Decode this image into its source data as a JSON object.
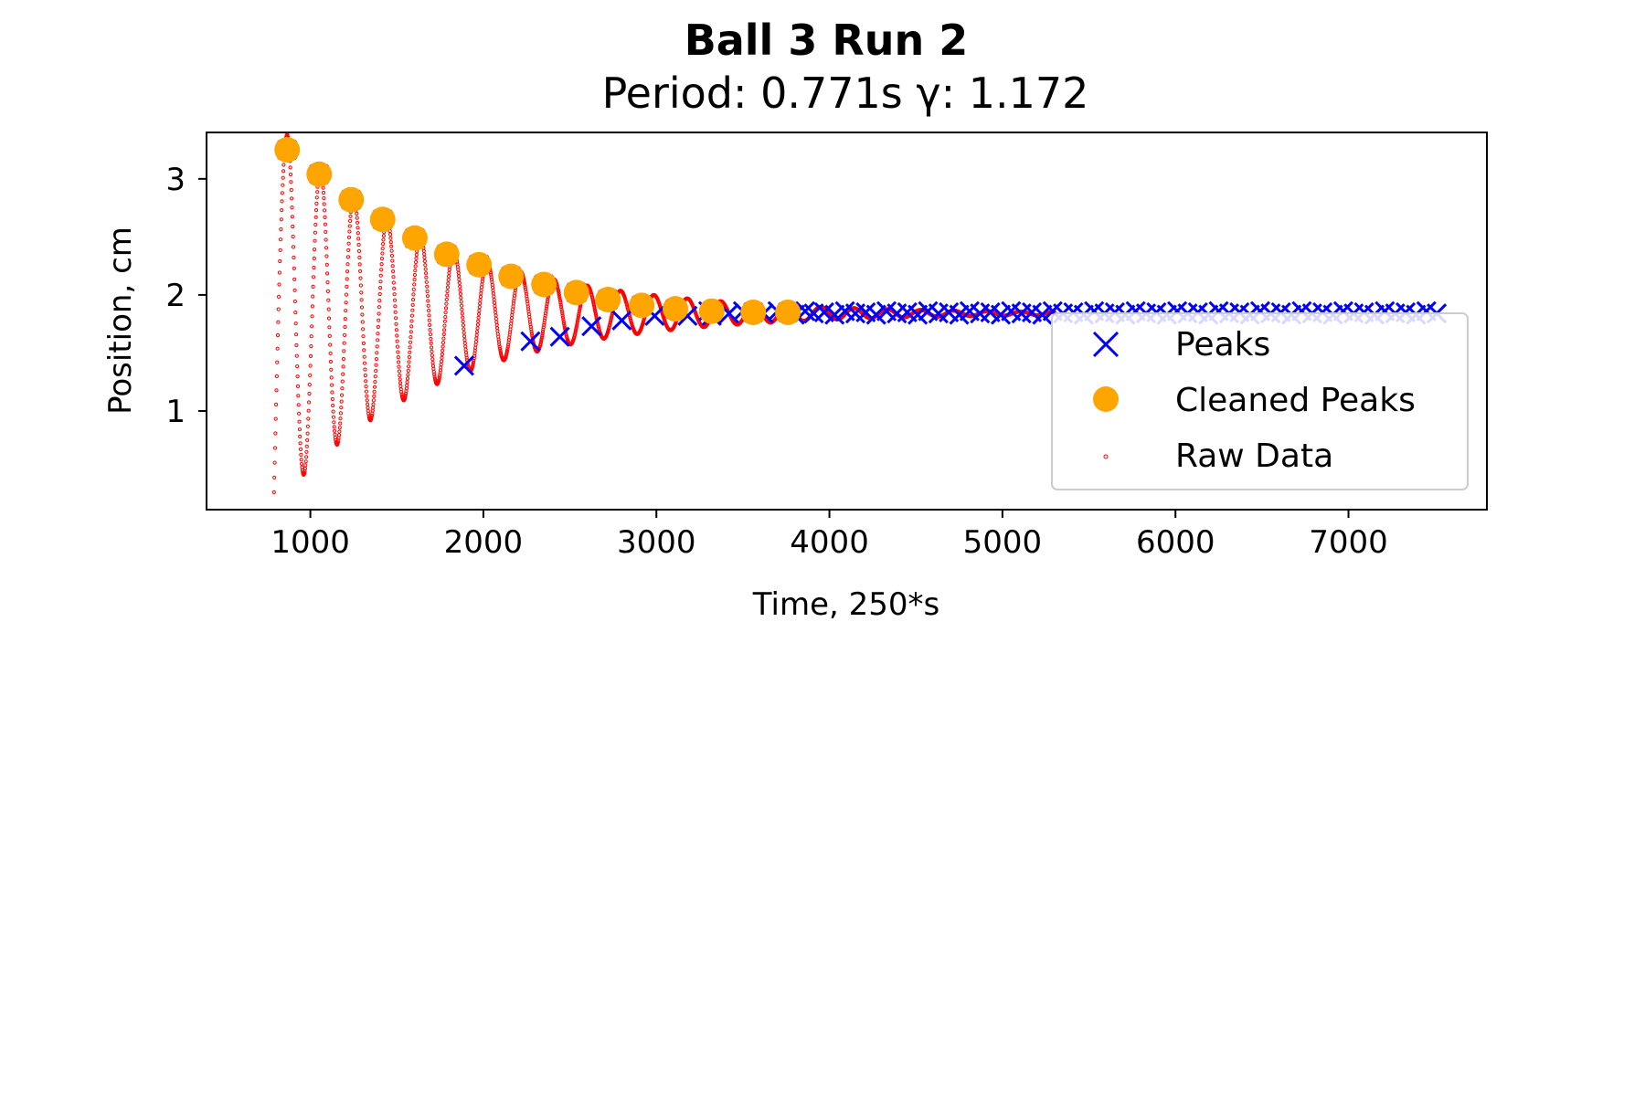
{
  "chart_data": {
    "type": "scatter",
    "title": "Ball 3 Run 2",
    "subtitle": "Period: 0.771s γ: 1.172",
    "xlabel": "Time, 250*s",
    "ylabel": "Position, cm",
    "xlim": [
      400,
      7800
    ],
    "ylim": [
      0.15,
      3.4
    ],
    "xticks": [
      1000,
      2000,
      3000,
      4000,
      5000,
      6000,
      7000
    ],
    "yticks": [
      1,
      2,
      3
    ],
    "grid": false,
    "legend_position": "lower-right",
    "raw_signal": {
      "start_time": 790,
      "start_value": 0.3,
      "equilibrium": 1.84,
      "period": 192.75,
      "initial_amplitude": 1.54,
      "decay_rate": 0.00107,
      "end_time": 5300,
      "first_peak_time": 866
    },
    "series": [
      {
        "name": "Peaks",
        "marker": "x",
        "color": "#0000ff",
        "x": [
          866,
          1051,
          1236,
          1418,
          1604,
          1788,
          1889,
          1975,
          2160,
          2272,
          2350,
          2442,
          2538,
          2625,
          2720,
          2800,
          2915,
          2990,
          3110,
          3180,
          3300,
          3320,
          3420,
          3500,
          3560,
          3620,
          3700,
          3760,
          3800,
          3860,
          3910,
          3970,
          4030,
          4090,
          4150,
          4210,
          4270,
          4330,
          4390,
          4450,
          4510,
          4570,
          4630,
          4690,
          4750,
          4810,
          4870,
          4930,
          4990,
          5050,
          5110,
          5170,
          5230,
          5290,
          5350,
          5410,
          5470,
          5530,
          5590,
          5650,
          5710,
          5770,
          5830,
          5890,
          5950,
          6010,
          6070,
          6130,
          6190,
          6250,
          6310,
          6370,
          6430,
          6490,
          6550,
          6610,
          6670,
          6730,
          6790,
          6850,
          6910,
          6970,
          7030,
          7090,
          7150,
          7210,
          7270,
          7330,
          7390,
          7450,
          7510
        ],
        "y": [
          3.25,
          3.04,
          2.82,
          2.65,
          2.49,
          2.35,
          1.39,
          2.26,
          2.16,
          1.6,
          2.09,
          1.64,
          2.02,
          1.73,
          1.96,
          1.78,
          1.91,
          1.82,
          1.88,
          1.82,
          1.86,
          1.82,
          1.84,
          1.86,
          1.85,
          1.84,
          1.86,
          1.85,
          1.83,
          1.86,
          1.84,
          1.85,
          1.83,
          1.86,
          1.84,
          1.85,
          1.83,
          1.86,
          1.84,
          1.85,
          1.83,
          1.86,
          1.84,
          1.85,
          1.83,
          1.86,
          1.84,
          1.85,
          1.83,
          1.86,
          1.84,
          1.85,
          1.83,
          1.86,
          1.84,
          1.85,
          1.83,
          1.86,
          1.84,
          1.85,
          1.83,
          1.86,
          1.84,
          1.85,
          1.83,
          1.86,
          1.84,
          1.85,
          1.83,
          1.86,
          1.84,
          1.85,
          1.83,
          1.86,
          1.84,
          1.85,
          1.83,
          1.86,
          1.84,
          1.85,
          1.83,
          1.86,
          1.84,
          1.85,
          1.83,
          1.86,
          1.84,
          1.85,
          1.83,
          1.86,
          1.84
        ]
      },
      {
        "name": "Cleaned Peaks",
        "marker": "circle",
        "color": "#ffa500",
        "x": [
          866,
          1051,
          1236,
          1418,
          1604,
          1788,
          1975,
          2160,
          2350,
          2538,
          2720,
          2915,
          3110,
          3320,
          3560,
          3760
        ],
        "y": [
          3.25,
          3.04,
          2.82,
          2.65,
          2.49,
          2.35,
          2.26,
          2.16,
          2.09,
          2.02,
          1.96,
          1.91,
          1.88,
          1.86,
          1.85,
          1.85
        ]
      },
      {
        "name": "Raw Data",
        "marker": "dot",
        "color": "#ff0000"
      }
    ]
  }
}
